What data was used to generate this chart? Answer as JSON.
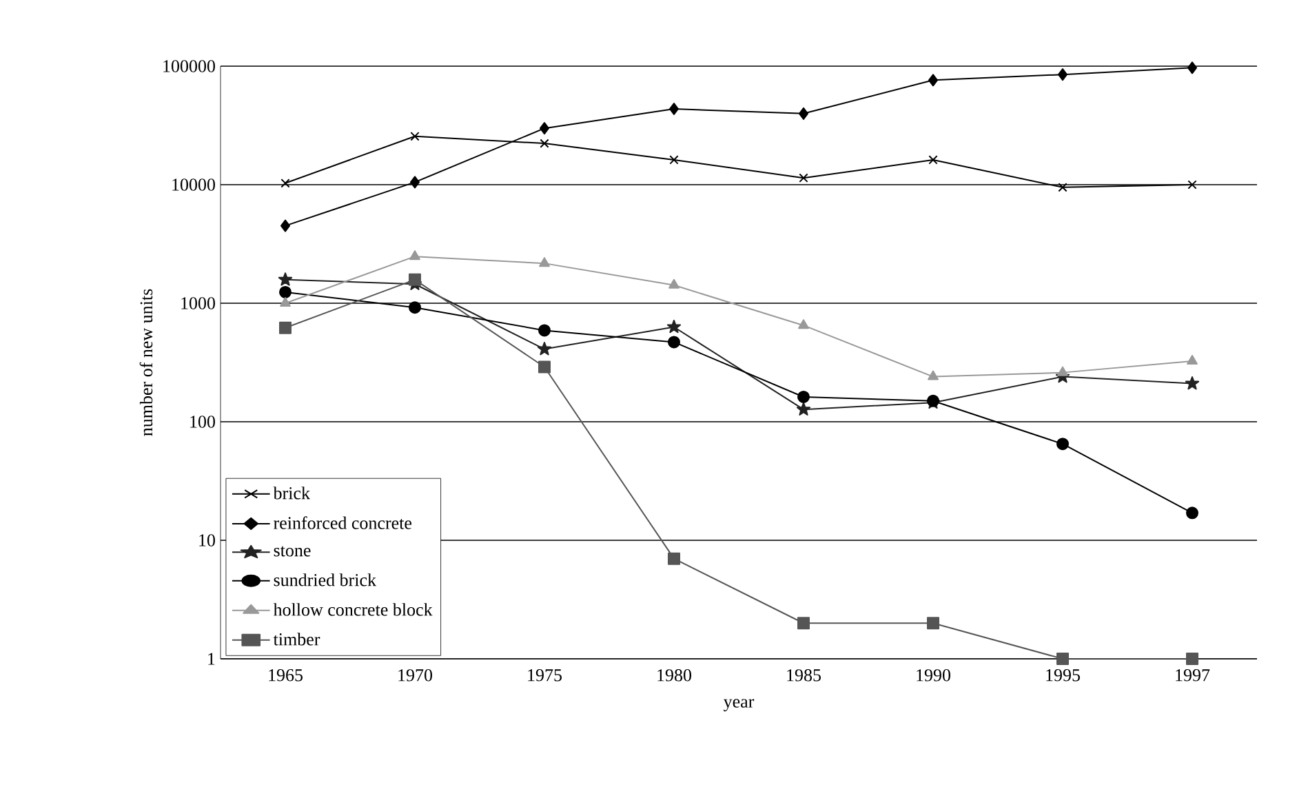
{
  "chart_data": {
    "type": "line",
    "xlabel": "year",
    "ylabel": "number of new units",
    "categories": [
      "1965",
      "1970",
      "1975",
      "1980",
      "1985",
      "1990",
      "1995",
      "1997"
    ],
    "series": [
      {
        "name": "brick",
        "color": "#000000",
        "marker": "cross",
        "values": [
          10300,
          25600,
          22300,
          16200,
          11400,
          16200,
          9500,
          10000
        ]
      },
      {
        "name": "reinforced concrete",
        "color": "#000000",
        "marker": "diamond",
        "values": [
          4500,
          10500,
          29900,
          43600,
          39800,
          76200,
          85000,
          97000
        ]
      },
      {
        "name": "stone",
        "color": "#222222",
        "marker": "star",
        "values": [
          1580,
          1450,
          410,
          630,
          127,
          145,
          240,
          210
        ]
      },
      {
        "name": "sundried brick",
        "color": "#000000",
        "marker": "circle",
        "values": [
          1240,
          920,
          590,
          470,
          162,
          150,
          65,
          17
        ]
      },
      {
        "name": "hollow concrete block",
        "color": "#999999",
        "marker": "triangle",
        "values": [
          1000,
          2480,
          2170,
          1420,
          650,
          240,
          260,
          325
        ]
      },
      {
        "name": "timber",
        "color": "#555555",
        "marker": "square",
        "values": [
          620,
          1580,
          290,
          7,
          2,
          2,
          1,
          1
        ]
      }
    ],
    "log": "y",
    "ylim": [
      1,
      100000
    ],
    "yticks": [
      1,
      10,
      100,
      1000,
      10000,
      100000
    ],
    "grid": "y",
    "legend": "bottom left",
    "line_style": "solid"
  }
}
